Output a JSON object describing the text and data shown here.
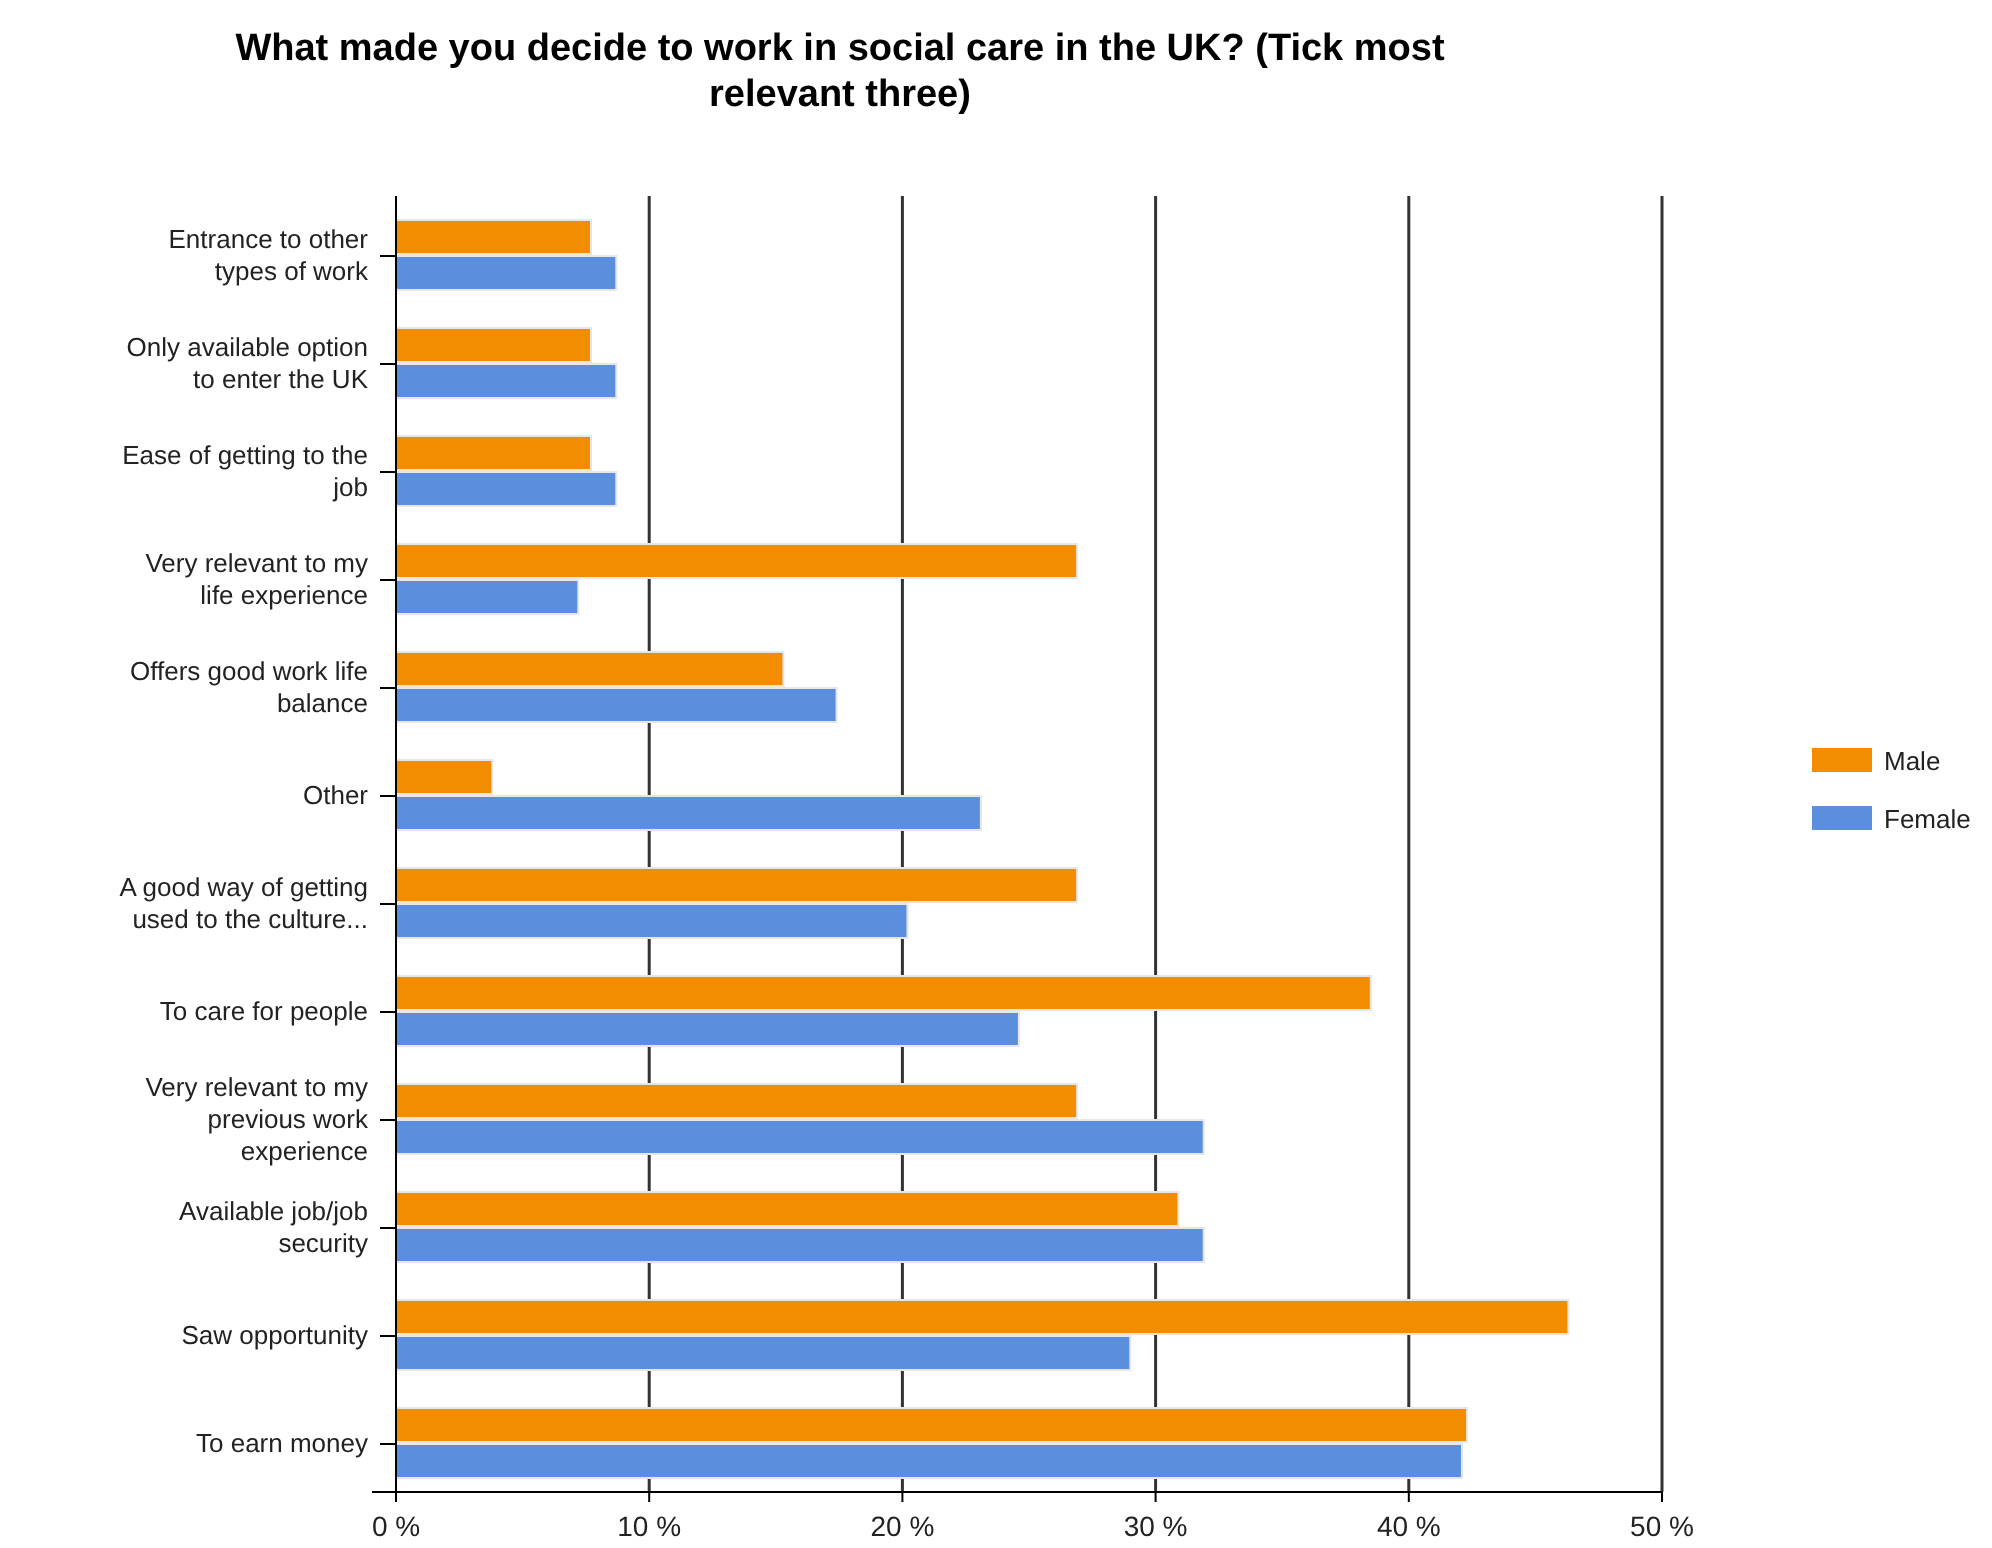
{
  "chart_data": {
    "type": "bar",
    "orientation": "horizontal",
    "title": "What made you decide to work in social care in the UK? (Tick most relevant three)",
    "categories": [
      "Entrance to other types of work",
      "Only available option to enter the UK",
      "Ease of getting to the job",
      "Very relevant to my life experience",
      "Offers good work life balance",
      "Other",
      "A good way of getting used to the culture...",
      "To care for people",
      "Very relevant to my previous work experience",
      "Available job/job security",
      "Saw opportunity",
      "To earn money"
    ],
    "series": [
      {
        "name": "Male",
        "color": "#f28c00",
        "values": [
          7.7,
          7.7,
          7.7,
          26.9,
          15.3,
          3.8,
          26.9,
          38.5,
          26.9,
          30.9,
          46.3,
          42.3
        ]
      },
      {
        "name": "Female",
        "color": "#5b8fde",
        "values": [
          8.7,
          8.7,
          8.7,
          7.2,
          17.4,
          23.1,
          20.2,
          24.6,
          31.9,
          31.9,
          29.0,
          42.1
        ]
      }
    ],
    "xlim": [
      0,
      50
    ],
    "xticks": [
      {
        "value": 0,
        "label": "0 %"
      },
      {
        "value": 10,
        "label": "10 %"
      },
      {
        "value": 20,
        "label": "20 %"
      },
      {
        "value": 30,
        "label": "30 %"
      },
      {
        "value": 40,
        "label": "40 %"
      },
      {
        "value": 50,
        "label": "50 %"
      }
    ],
    "grid": "x",
    "legend": "right"
  }
}
